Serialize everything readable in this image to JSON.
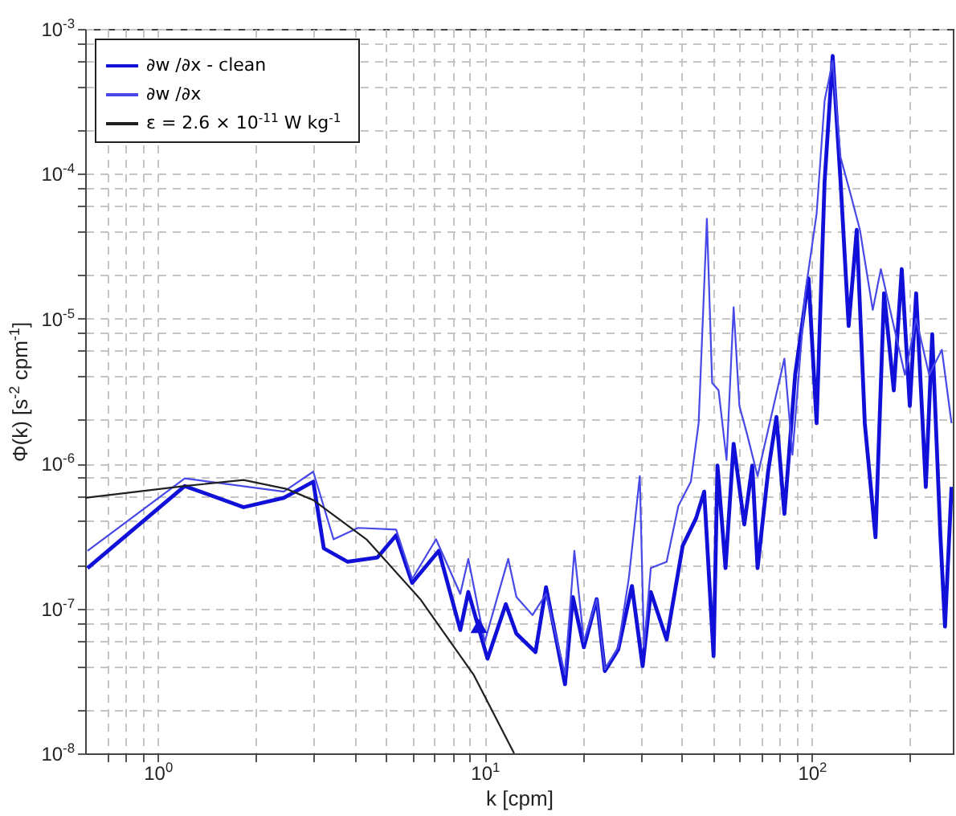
{
  "chart_data": {
    "type": "line",
    "xlabel": "k  [cpm]",
    "ylabel": "Φ(k) [s$^{-2}$ cpm$^{-1}$]",
    "log": "xy",
    "grid": true,
    "legend": "top left",
    "xlim": [
      0.6,
      270
    ],
    "ylim": [
      1e-08,
      0.001
    ],
    "xticks": [
      {
        "value": 0.7,
        "label": null
      },
      {
        "value": 0.8,
        "label": null
      },
      {
        "value": 0.9,
        "label": null
      },
      {
        "value": 1,
        "label": "10$^{0}$"
      },
      {
        "value": 2,
        "label": null
      },
      {
        "value": 3,
        "label": null
      },
      {
        "value": 4,
        "label": null
      },
      {
        "value": 5,
        "label": null
      },
      {
        "value": 6,
        "label": null
      },
      {
        "value": 7,
        "label": null
      },
      {
        "value": 8,
        "label": null
      },
      {
        "value": 9,
        "label": null
      },
      {
        "value": 10,
        "label": "10$^{1}$"
      },
      {
        "value": 20,
        "label": null
      },
      {
        "value": 30,
        "label": null
      },
      {
        "value": 40,
        "label": null
      },
      {
        "value": 50,
        "label": null
      },
      {
        "value": 60,
        "label": null
      },
      {
        "value": 70,
        "label": null
      },
      {
        "value": 80,
        "label": null
      },
      {
        "value": 90,
        "label": null
      },
      {
        "value": 100,
        "label": "10$^{2}$"
      },
      {
        "value": 200,
        "label": null
      }
    ],
    "yticks": [
      {
        "value": 1e-08,
        "label": "10$^{-8}$"
      },
      {
        "value": 2e-08,
        "label": null
      },
      {
        "value": 4e-08,
        "label": null
      },
      {
        "value": 6e-08,
        "label": null
      },
      {
        "value": 8e-08,
        "label": null
      },
      {
        "value": 1e-07,
        "label": "10$^{-7}$"
      },
      {
        "value": 2e-07,
        "label": null
      },
      {
        "value": 4e-07,
        "label": null
      },
      {
        "value": 6e-07,
        "label": null
      },
      {
        "value": 8e-07,
        "label": null
      },
      {
        "value": 1e-06,
        "label": "10$^{-6}$"
      },
      {
        "value": 2e-06,
        "label": null
      },
      {
        "value": 4e-06,
        "label": null
      },
      {
        "value": 6e-06,
        "label": null
      },
      {
        "value": 8e-06,
        "label": null
      },
      {
        "value": 1e-05,
        "label": "10$^{-5}$"
      },
      {
        "value": 2e-05,
        "label": null
      },
      {
        "value": 4e-05,
        "label": null
      },
      {
        "value": 6e-05,
        "label": null
      },
      {
        "value": 8e-05,
        "label": null
      },
      {
        "value": 0.0001,
        "label": "10$^{-4}$"
      },
      {
        "value": 0.0002,
        "label": null
      },
      {
        "value": 0.0004,
        "label": null
      },
      {
        "value": 0.0006,
        "label": null
      },
      {
        "value": 0.0008,
        "label": null
      },
      {
        "value": 0.001,
        "label": "10$^{-3}$"
      }
    ],
    "series": [
      {
        "name": "∂w /∂x - clean",
        "color": "#1010d8",
        "type": "line",
        "x": [
          0.61,
          1.21,
          1.83,
          2.43,
          2.99,
          3.22,
          3.81,
          4.7,
          5.36,
          6.0,
          7.24,
          8.42,
          8.91,
          10.2,
          11.6,
          12.5,
          14.3,
          15.4,
          17.6,
          18.6,
          20.1,
          22.0,
          23.3,
          25.6,
          28.2,
          30.4,
          32.2,
          36.0,
          40.3,
          44.3,
          46.9,
          50.1,
          51.5,
          54.5,
          57.7,
          62.2,
          65.8,
          68.3,
          73.6,
          78.0,
          82.5,
          89.0,
          97.8,
          103.5,
          109.5,
          115.9,
          122.5,
          129.7,
          137.3,
          145.3,
          156.7,
          166.4,
          178.2,
          188.5,
          199.5,
          208.6,
          223.3,
          233.6,
          247.4,
          255.6,
          267.6
        ],
        "values": [
          1.9e-07,
          7e-07,
          5e-07,
          5.8e-07,
          7.5e-07,
          2.6e-07,
          2.1e-07,
          2.25e-07,
          3.2e-07,
          1.5e-07,
          2.5e-07,
          7.1e-08,
          1.3e-07,
          4.5e-08,
          1.07e-07,
          6.7e-08,
          5e-08,
          1.4e-07,
          3e-08,
          1.2e-07,
          5.4e-08,
          1.16e-07,
          3.7e-08,
          5.2e-08,
          1.43e-07,
          4e-08,
          1.3e-07,
          6.1e-08,
          2.7e-07,
          4.2e-07,
          6.4e-07,
          4.7e-08,
          9.7e-07,
          1.9e-07,
          1.37e-06,
          3.8e-07,
          9.7e-07,
          1.9e-07,
          8.9e-07,
          2.1e-06,
          4.5e-07,
          4.1e-06,
          1.9e-05,
          1.9e-06,
          8.9e-05,
          0.00065,
          8.9e-05,
          8.9e-06,
          4.1e-05,
          1.9e-06,
          3.1e-07,
          1.5e-05,
          3.2e-06,
          2.2e-05,
          2.5e-06,
          1.5e-05,
          6.9e-07,
          7.8e-06,
          3.2e-07,
          7.5e-08,
          6.9e-07
        ]
      },
      {
        "name": "∂w /∂x",
        "color": "#4848e8",
        "type": "line",
        "x": [
          0.61,
          1.21,
          2.43,
          2.99,
          3.45,
          4.1,
          5.36,
          6.0,
          7.1,
          8.42,
          8.91,
          10.0,
          11.8,
          12.5,
          14.0,
          15.4,
          17.6,
          18.8,
          20.1,
          22.0,
          23.3,
          25.6,
          27.6,
          29.8,
          30.7,
          32.2,
          36.0,
          39.1,
          42.7,
          45.1,
          47.8,
          49.6,
          51.9,
          54.9,
          57.7,
          60.1,
          63.4,
          68.3,
          82.5,
          87.3,
          95.5,
          103.5,
          109.5,
          115.9,
          122.5,
          132.2,
          140.4,
          153.7,
          162.7,
          178.2,
          192.8,
          208.6,
          228.6,
          250.0,
          267.6
        ],
        "values": [
          2.5e-07,
          7.9e-07,
          6.4e-07,
          8.8e-07,
          3e-07,
          3.6e-07,
          3.5e-07,
          1.6e-07,
          3e-07,
          1.26e-07,
          2.2e-07,
          5.9e-08,
          2.2e-07,
          1.2e-07,
          9e-08,
          1.26e-07,
          3.5e-08,
          2.5e-07,
          5.9e-08,
          1.16e-07,
          3.8e-08,
          5.4e-08,
          1.63e-07,
          8.2e-07,
          5.4e-08,
          1.9e-07,
          2.1e-07,
          5.1e-07,
          7.5e-07,
          1.9e-06,
          4.9e-05,
          3.6e-06,
          3.2e-06,
          1.06e-06,
          1.2e-05,
          2.5e-06,
          1.6e-06,
          8.2e-07,
          5.3e-06,
          1.15e-06,
          1.5e-05,
          5.3e-05,
          0.00032,
          0.0006,
          0.00013,
          6.9e-05,
          4.1e-05,
          1.15e-05,
          2.2e-05,
          8.9e-06,
          4.1e-06,
          1e-05,
          4.1e-06,
          6.1e-06,
          1.9e-06
        ]
      },
      {
        "name": "ε = 2.6 × 10$^{-11}$ W kg$^{-1}$",
        "color": "#202020",
        "type": "line",
        "x": [
          0.6,
          1.21,
          1.83,
          2.47,
          2.99,
          4.35,
          6.35,
          9.24,
          12.3
        ],
        "values": [
          5.8e-07,
          7e-07,
          7.7e-07,
          6.7e-07,
          5.6e-07,
          3e-07,
          1.16e-07,
          3.5e-08,
          1e-08
        ]
      },
      {
        "color": "#1010d8",
        "type": "scatter",
        "marker": "triangle",
        "x": [
          9.6
        ],
        "values": [
          7.6e-08
        ]
      }
    ]
  }
}
